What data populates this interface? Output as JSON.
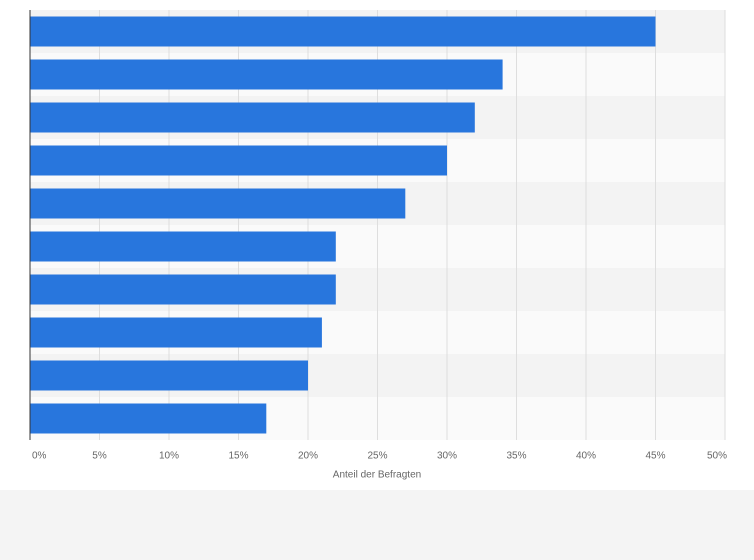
{
  "chart_data": {
    "type": "bar",
    "orientation": "horizontal",
    "x_label": "Anteil der Befragten",
    "categories": [
      null,
      null,
      null,
      null,
      null,
      null,
      null,
      null,
      null,
      null
    ],
    "values": [
      45,
      34,
      32,
      30,
      27,
      22,
      22,
      21,
      20,
      17
    ],
    "color": "#2876dd",
    "xlim": [
      0,
      50
    ],
    "xticks": [
      {
        "value": 0,
        "label": "0%"
      },
      {
        "value": 5,
        "label": "5%"
      },
      {
        "value": 10,
        "label": "10%"
      },
      {
        "value": 15,
        "label": "15%"
      },
      {
        "value": 20,
        "label": "20%"
      },
      {
        "value": 25,
        "label": "25%"
      },
      {
        "value": 30,
        "label": "30%"
      },
      {
        "value": 35,
        "label": "35%"
      },
      {
        "value": 40,
        "label": "40%"
      },
      {
        "value": 45,
        "label": "45%"
      },
      {
        "value": 50,
        "label": "50%"
      }
    ],
    "grid": true
  }
}
